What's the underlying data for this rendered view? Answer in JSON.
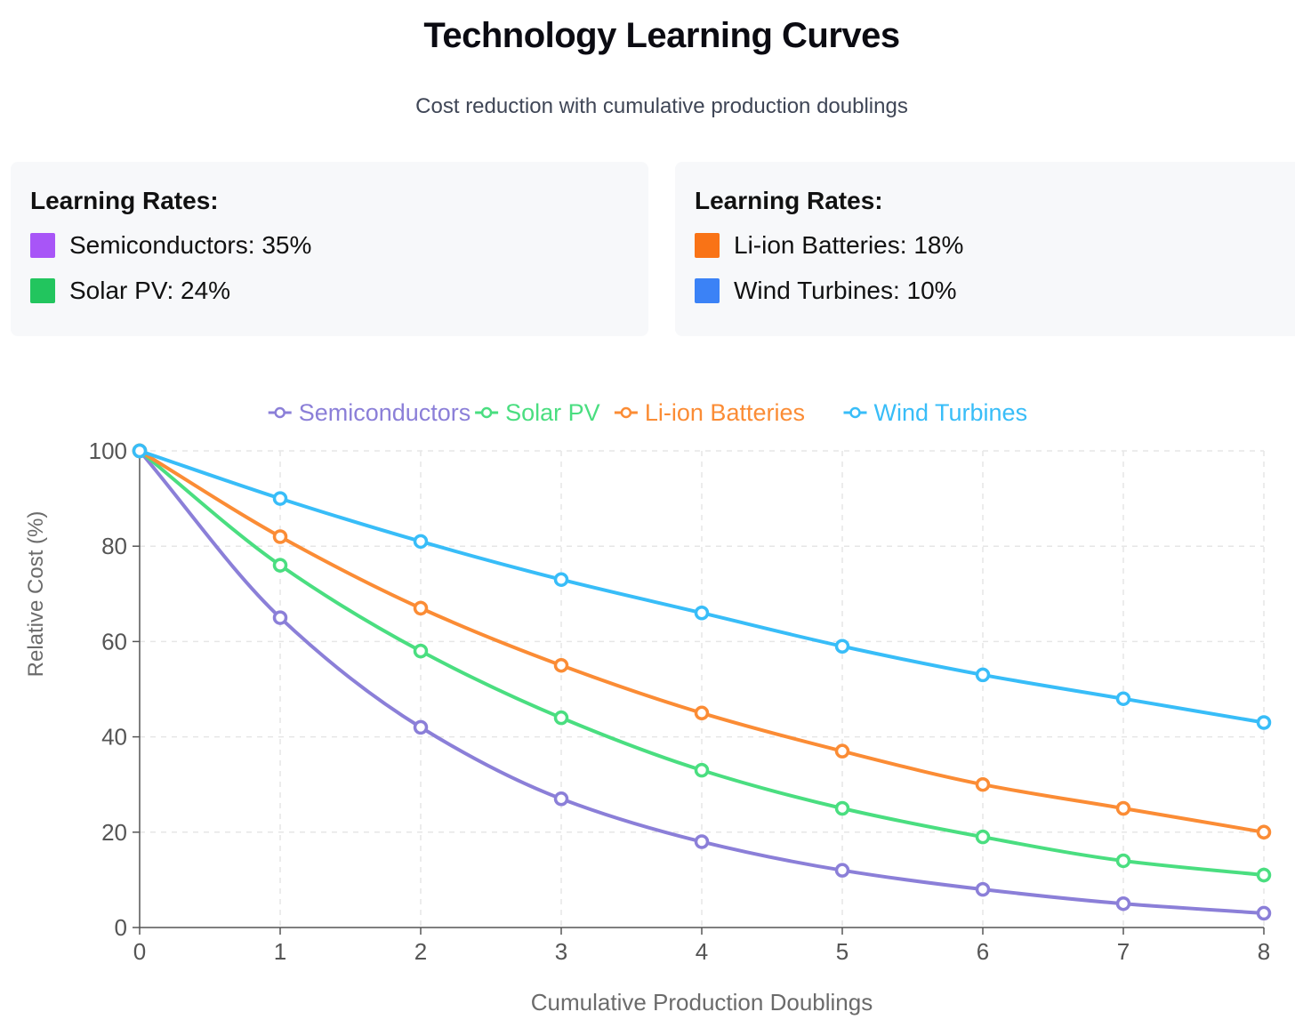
{
  "header": {
    "title": "Technology Learning Curves",
    "subtitle": "Cost reduction with cumulative production doublings"
  },
  "info_boxes": [
    {
      "title": "Learning Rates:",
      "items": [
        {
          "label": "Semiconductors: 35%",
          "color": "#a855f7"
        },
        {
          "label": "Solar PV: 24%",
          "color": "#22c55e"
        }
      ]
    },
    {
      "title": "Learning Rates:",
      "items": [
        {
          "label": "Li-ion Batteries: 18%",
          "color": "#f97316"
        },
        {
          "label": "Wind Turbines: 10%",
          "color": "#3b82f6"
        }
      ]
    }
  ],
  "chart_data": {
    "type": "line",
    "xlabel": "Cumulative Production Doublings",
    "ylabel": "Relative Cost (%)",
    "x": [
      0,
      1,
      2,
      3,
      4,
      5,
      6,
      7,
      8
    ],
    "xlim": [
      0,
      8
    ],
    "ylim": [
      0,
      100
    ],
    "yticks": [
      0,
      20,
      40,
      60,
      80,
      100
    ],
    "grid": true,
    "legend": "top-center",
    "series": [
      {
        "name": "Semiconductors",
        "color": "#8b7fd8",
        "values": [
          100,
          65,
          42,
          27,
          18,
          12,
          8,
          5,
          3
        ]
      },
      {
        "name": "Solar PV",
        "color": "#4ade80",
        "values": [
          100,
          76,
          58,
          44,
          33,
          25,
          19,
          14,
          11
        ]
      },
      {
        "name": "Li-ion Batteries",
        "color": "#fb8c35",
        "values": [
          100,
          82,
          67,
          55,
          45,
          37,
          30,
          25,
          20
        ]
      },
      {
        "name": "Wind Turbines",
        "color": "#38bdf8",
        "values": [
          100,
          90,
          81,
          73,
          66,
          59,
          53,
          48,
          43
        ]
      }
    ]
  }
}
